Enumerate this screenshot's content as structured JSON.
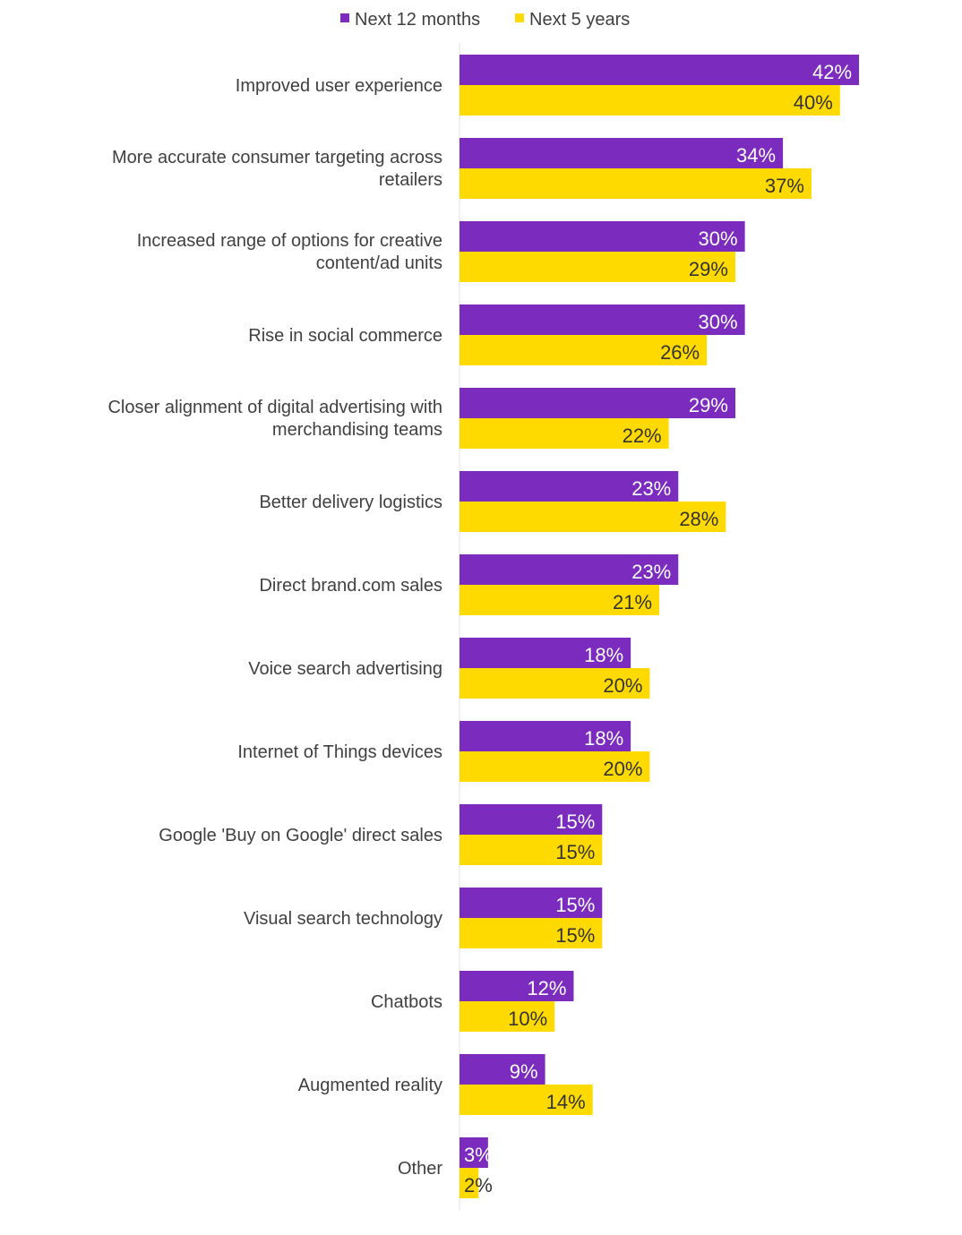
{
  "chart_data": {
    "type": "bar",
    "orientation": "horizontal",
    "categories": [
      "Improved user experience",
      "More accurate consumer targeting across retailers",
      "Increased range of options for creative content/ad units",
      "Rise in social commerce",
      "Closer alignment of digital advertising with merchandising teams",
      "Better delivery logistics",
      "Direct brand.com sales",
      "Voice search advertising",
      "Internet of Things devices",
      "Google 'Buy on Google' direct sales",
      "Visual search technology",
      "Chatbots",
      "Augmented reality",
      "Other"
    ],
    "category_lines": [
      [
        "Improved user experience"
      ],
      [
        "More accurate consumer targeting across",
        "retailers"
      ],
      [
        "Increased range of options for creative",
        "content/ad units"
      ],
      [
        "Rise in social commerce"
      ],
      [
        "Closer alignment of digital advertising with",
        "merchandising teams"
      ],
      [
        "Better delivery logistics"
      ],
      [
        "Direct brand.com sales"
      ],
      [
        "Voice search advertising"
      ],
      [
        "Internet of Things devices"
      ],
      [
        "Google 'Buy on Google' direct sales"
      ],
      [
        "Visual search technology"
      ],
      [
        "Chatbots"
      ],
      [
        "Augmented reality"
      ],
      [
        "Other"
      ]
    ],
    "series": [
      {
        "name": "Next 12 months",
        "color": "#7B2CBF",
        "label_color": "#ffffff",
        "values": [
          42,
          34,
          30,
          30,
          29,
          23,
          23,
          18,
          18,
          15,
          15,
          12,
          9,
          3
        ]
      },
      {
        "name": "Next 5 years",
        "color": "#FFDA00",
        "label_color": "#333333",
        "values": [
          40,
          37,
          29,
          26,
          22,
          28,
          21,
          20,
          20,
          15,
          15,
          10,
          14,
          2
        ]
      }
    ],
    "value_format": "%",
    "xlim": [
      0,
      42
    ],
    "legend_position": "top",
    "grid": false,
    "title": "",
    "xlabel": "",
    "ylabel": ""
  }
}
